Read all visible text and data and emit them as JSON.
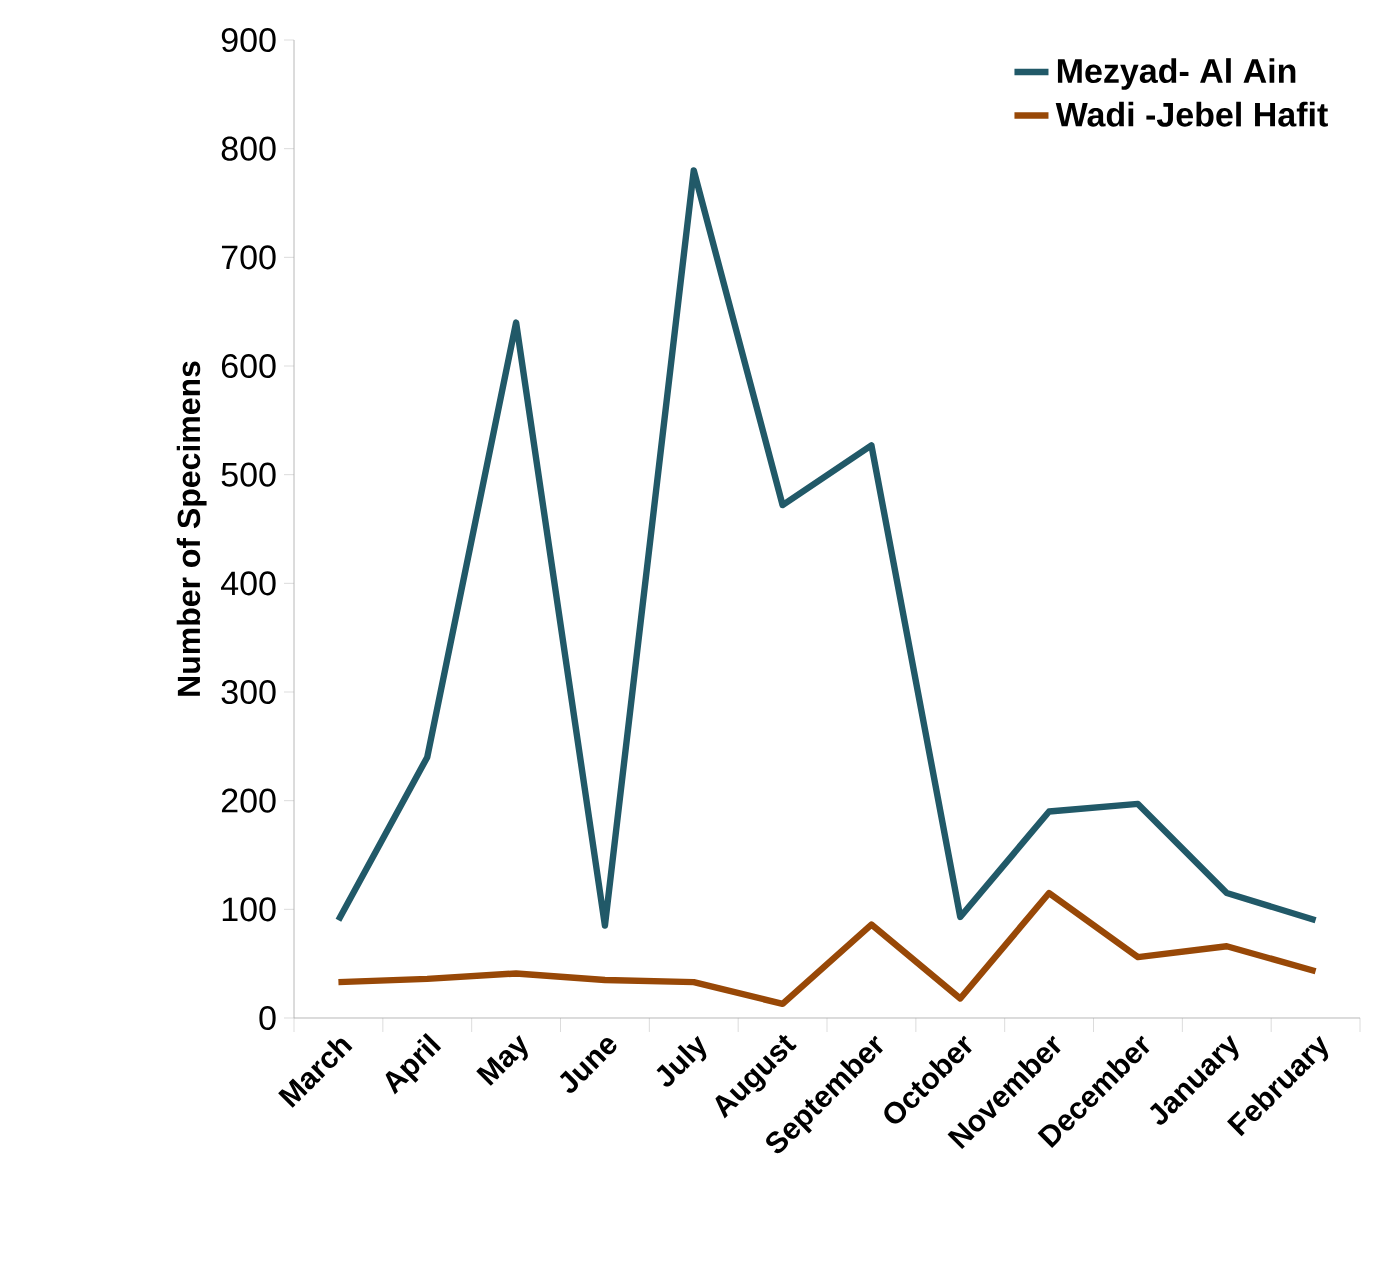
{
  "chart_data": {
    "type": "line",
    "ylabel": "Number of Specimens",
    "categories": [
      "March",
      "April",
      "May",
      "June",
      "July",
      "August",
      "September",
      "October",
      "November",
      "December",
      "January",
      "February"
    ],
    "series": [
      {
        "name": "Mezyad- Al Ain",
        "color": "#215968",
        "values": [
          90,
          240,
          640,
          85,
          780,
          472,
          527,
          93,
          190,
          197,
          115,
          90
        ]
      },
      {
        "name": "Wadi -Jebel Hafit",
        "color": "#984807",
        "values": [
          33,
          36,
          41,
          35,
          33,
          13,
          86,
          18,
          115,
          56,
          66,
          43
        ]
      }
    ],
    "ylim": [
      0,
      900
    ],
    "yticks": [
      0,
      100,
      200,
      300,
      400,
      500,
      600,
      700,
      800,
      900
    ],
    "grid": false,
    "legend": "top right",
    "marker": "none",
    "line_style": "solid"
  }
}
